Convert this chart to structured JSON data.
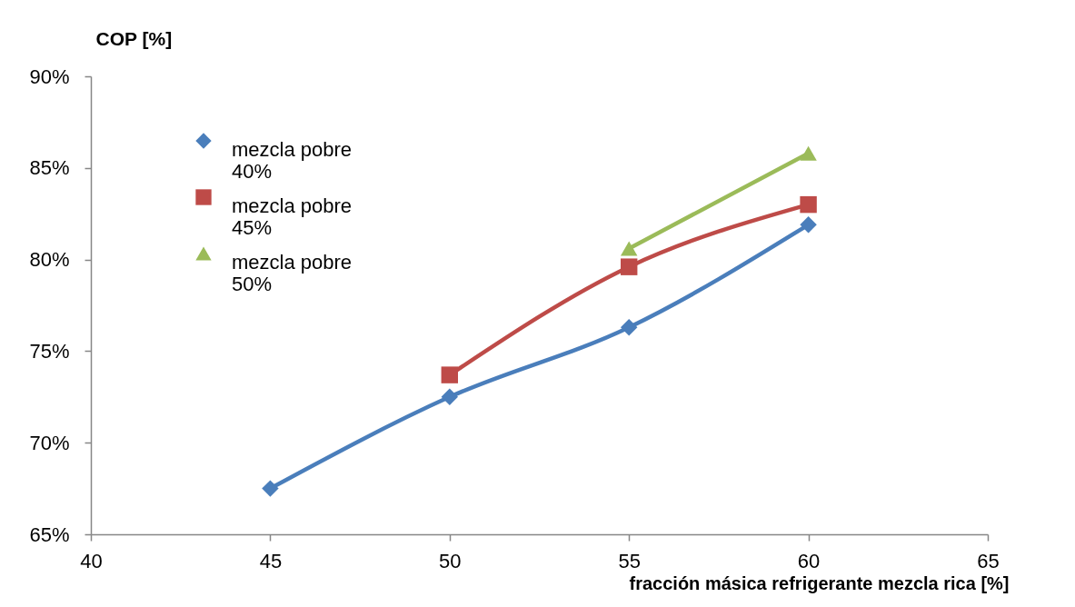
{
  "chart_data": {
    "type": "line",
    "xlabel": "fracción másica refrigerante mezcla rica [%]",
    "ylabel": "COP [%]",
    "xlim": [
      40,
      65
    ],
    "xticks": [
      40,
      45,
      50,
      55,
      60,
      65
    ],
    "ylim": [
      65,
      90
    ],
    "yticks": [
      {
        "value": 65,
        "label": "65%"
      },
      {
        "value": 70,
        "label": "70%"
      },
      {
        "value": 75,
        "label": "75%"
      },
      {
        "value": 80,
        "label": "80%"
      },
      {
        "value": 85,
        "label": "85%"
      },
      {
        "value": 90,
        "label": "90%"
      }
    ],
    "legend": "top left",
    "series": [
      {
        "name": "mezcla pobre 40%",
        "color": "#4a7ebb",
        "marker": "diamond",
        "x": [
          45,
          50,
          55,
          60
        ],
        "values": [
          67.5,
          72.5,
          76.3,
          81.9
        ]
      },
      {
        "name": "mezcla pobre 45%",
        "color": "#be4b48",
        "marker": "square",
        "x": [
          50,
          55,
          60
        ],
        "values": [
          73.7,
          79.6,
          83.0
        ]
      },
      {
        "name": "mezcla pobre 50%",
        "color": "#9bbb59",
        "marker": "triangle",
        "x": [
          55,
          60
        ],
        "values": [
          80.6,
          85.8
        ]
      }
    ]
  }
}
